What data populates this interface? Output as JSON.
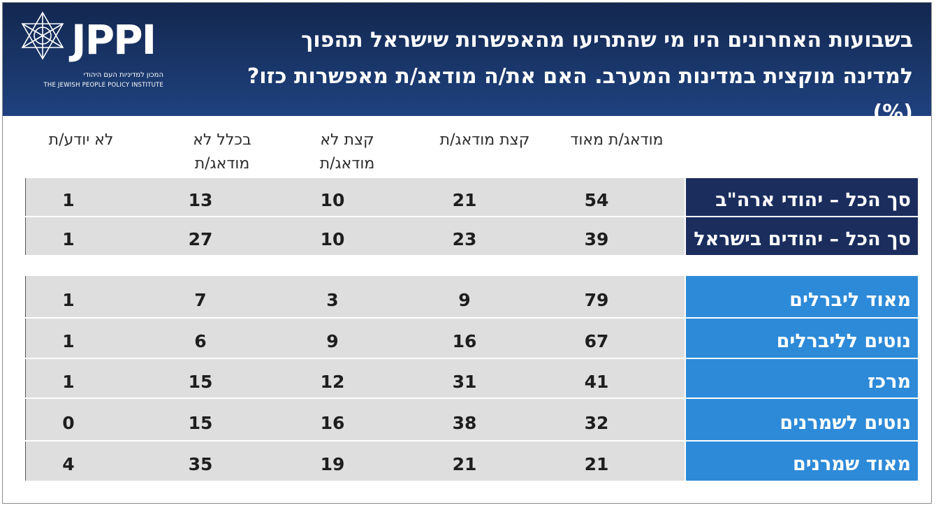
{
  "brand": {
    "logo_text": "JPPI",
    "logo_hebrew": "המכון למדיניות העם היהודי",
    "logo_english": "THE JEWISH PEOPLE POLICY INSTITUTE"
  },
  "title_lines": [
    "בשבועות האחרונים היו מי שהתריעו מהאפשרות שישראל תהפוך",
    "למדינה מוקצית במדינות המערב. האם את/ה מודאג/ת מאפשרות כזו? (%)"
  ],
  "chart_data": {
    "type": "table",
    "unit": "%",
    "columns": [
      "מודאג/ת מאוד",
      "קצת מודאג/ת",
      "קצת לא מודאג/ת",
      "בכלל לא מודאג/ת",
      "לא יודע/ת"
    ],
    "groups": [
      {
        "rows": [
          {
            "label": "סך הכל – יהודי ארה\"ב",
            "values": [
              54,
              21,
              10,
              13,
              1
            ],
            "color": "#1a2d5d"
          },
          {
            "label": "סך הכל – יהודים בישראל",
            "values": [
              39,
              23,
              10,
              27,
              1
            ],
            "color": "#1a2d5d"
          }
        ]
      },
      {
        "rows": [
          {
            "label": "מאוד ליברלים",
            "values": [
              79,
              9,
              3,
              7,
              1
            ],
            "color": "#2d8ad8"
          },
          {
            "label": "נוטים לליברלים",
            "values": [
              67,
              16,
              9,
              6,
              1
            ],
            "color": "#2d8ad8"
          },
          {
            "label": "מרכז",
            "values": [
              41,
              31,
              12,
              15,
              1
            ],
            "color": "#2d8ad8"
          },
          {
            "label": "נוטים לשמרנים",
            "values": [
              32,
              38,
              16,
              15,
              0
            ],
            "color": "#2d8ad8"
          },
          {
            "label": "מאוד שמרנים",
            "values": [
              21,
              21,
              19,
              35,
              4
            ],
            "color": "#2d8ad8"
          }
        ]
      }
    ]
  }
}
